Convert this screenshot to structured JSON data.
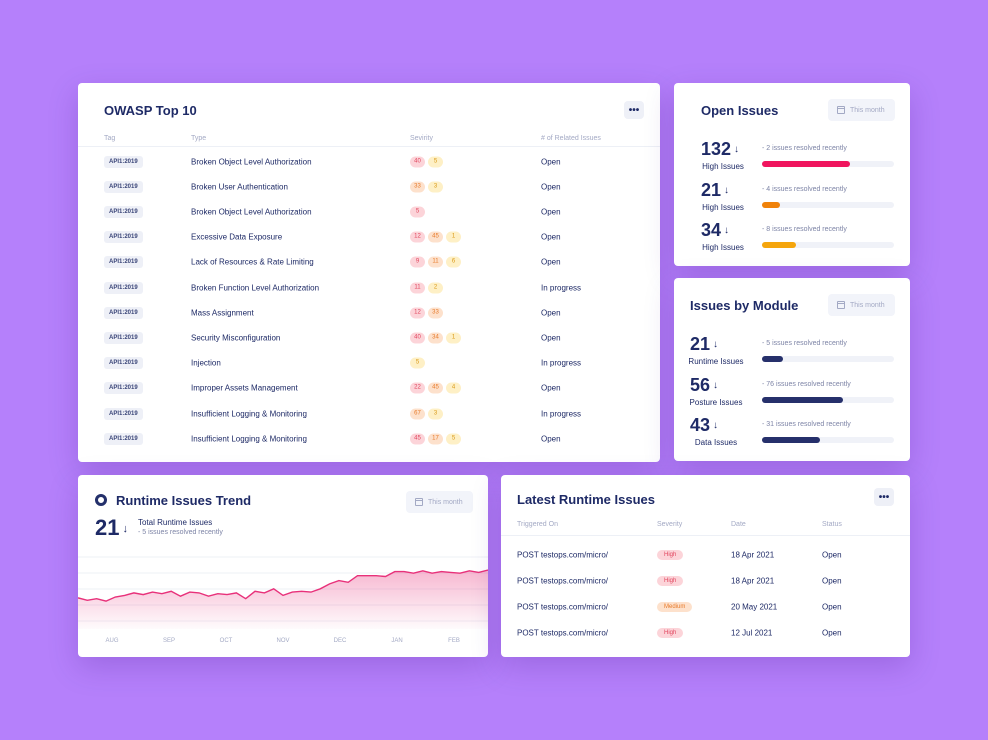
{
  "owasp": {
    "title": "OWASP Top 10",
    "more_label": "•••",
    "columns": {
      "tag": "Tag",
      "type": "Type",
      "severity": "Sevirity",
      "related": "# of Related Issues"
    },
    "rows": [
      {
        "tag": "API1:2019",
        "type": "Broken Object Level Authorization",
        "severity": [
          {
            "value": "40",
            "level": "critical"
          },
          {
            "value": "5",
            "level": "medium"
          }
        ],
        "status": "Open"
      },
      {
        "tag": "API1:2019",
        "type": "Broken User Authentication",
        "severity": [
          {
            "value": "33",
            "level": "high"
          },
          {
            "value": "3",
            "level": "medium"
          }
        ],
        "status": "Open"
      },
      {
        "tag": "API1:2019",
        "type": "Broken Object Level Authorization",
        "severity": [
          {
            "value": "5",
            "level": "critical"
          }
        ],
        "status": "Open"
      },
      {
        "tag": "API1:2019",
        "type": "Excessive Data Exposure",
        "severity": [
          {
            "value": "12",
            "level": "critical"
          },
          {
            "value": "45",
            "level": "high"
          },
          {
            "value": "1",
            "level": "medium"
          }
        ],
        "status": "Open"
      },
      {
        "tag": "API1:2019",
        "type": "Lack of Resources & Rate Limiting",
        "severity": [
          {
            "value": "9",
            "level": "critical"
          },
          {
            "value": "11",
            "level": "high"
          },
          {
            "value": "6",
            "level": "medium"
          }
        ],
        "status": "Open"
      },
      {
        "tag": "API1:2019",
        "type": "Broken Function Level Authorization",
        "severity": [
          {
            "value": "11",
            "level": "critical"
          },
          {
            "value": "2",
            "level": "medium"
          }
        ],
        "status": "In progress"
      },
      {
        "tag": "API1:2019",
        "type": "Mass Assignment",
        "severity": [
          {
            "value": "12",
            "level": "critical"
          },
          {
            "value": "33",
            "level": "high"
          }
        ],
        "status": "Open"
      },
      {
        "tag": "API1:2019",
        "type": "Security Misconfiguration",
        "severity": [
          {
            "value": "40",
            "level": "critical"
          },
          {
            "value": "34",
            "level": "high"
          },
          {
            "value": "1",
            "level": "medium"
          }
        ],
        "status": "Open"
      },
      {
        "tag": "API1:2019",
        "type": "Injection",
        "severity": [
          {
            "value": "5",
            "level": "medium"
          }
        ],
        "status": "In progress"
      },
      {
        "tag": "API1:2019",
        "type": "Improper Assets Management",
        "severity": [
          {
            "value": "22",
            "level": "critical"
          },
          {
            "value": "45",
            "level": "high"
          },
          {
            "value": "4",
            "level": "medium"
          }
        ],
        "status": "Open"
      },
      {
        "tag": "API1:2019",
        "type": "Insufficient Logging & Monitoring",
        "severity": [
          {
            "value": "67",
            "level": "high"
          },
          {
            "value": "3",
            "level": "medium"
          }
        ],
        "status": "In progress"
      },
      {
        "tag": "API1:2019",
        "type": "Insufficient Logging & Monitoring",
        "severity": [
          {
            "value": "45",
            "level": "critical"
          },
          {
            "value": "17",
            "level": "high"
          },
          {
            "value": "5",
            "level": "medium"
          }
        ],
        "status": "Open"
      }
    ]
  },
  "open_issues": {
    "title": "Open Issues",
    "period_label": "This month",
    "items": [
      {
        "count": "132",
        "arrow": "↓",
        "label": "High Issues",
        "note": "- 2 issues resolved recently",
        "progress": 0.67,
        "color": "#f0155e"
      },
      {
        "count": "21",
        "arrow": "↓",
        "label": "High Issues",
        "note": "- 4 issues resolved recently",
        "progress": 0.14,
        "color": "#f0820a"
      },
      {
        "count": "34",
        "arrow": "↓",
        "label": "High Issues",
        "note": "- 8 issues resolved recently",
        "progress": 0.26,
        "color": "#f5a50c"
      }
    ]
  },
  "issues_by_module": {
    "title": "Issues by Module",
    "period_label": "This month",
    "items": [
      {
        "count": "21",
        "arrow": "↓",
        "label": "Runtime Issues",
        "note": "- 5 issues resolved recently",
        "progress": 0.16,
        "color": "#26306b"
      },
      {
        "count": "56",
        "arrow": "↓",
        "label": "Posture Issues",
        "note": "- 76 issues resolved recently",
        "progress": 0.61,
        "color": "#26306b"
      },
      {
        "count": "43",
        "arrow": "↓",
        "label": "Data Issues",
        "note": "- 31 issues resolved recently",
        "progress": 0.44,
        "color": "#26306b"
      }
    ]
  },
  "runtime_trend": {
    "title": "Runtime Issues Trend",
    "period_label": "This month",
    "total": "21",
    "arrow": "↓",
    "total_label": "Total Runtime Issues",
    "note": "- 5 issues resolved recently",
    "line_color": "#e8317a"
  },
  "chart_data": {
    "type": "area",
    "title": "Runtime Issues Trend",
    "x_labels": [
      "AUG",
      "SEP",
      "OCT",
      "NOV",
      "DEC",
      "JAN",
      "FEB"
    ],
    "y_range": [
      0,
      100
    ],
    "values": [
      38,
      35,
      37,
      34,
      39,
      41,
      44,
      42,
      45,
      43,
      46,
      40,
      45,
      44,
      40,
      43,
      42,
      44,
      37,
      46,
      44,
      49,
      41,
      45,
      46,
      45,
      49,
      55,
      59,
      57,
      65,
      65,
      65,
      64,
      70,
      70,
      68,
      71,
      68,
      70,
      69,
      68,
      71,
      69,
      72
    ]
  },
  "latest_runtime": {
    "title": "Latest Runtime Issues",
    "more_label": "•••",
    "columns": {
      "triggered_on": "Triggered On",
      "severity": "Severity",
      "date": "Date",
      "status": "Status"
    },
    "rows": [
      {
        "triggered_on": "POST testops.com/micro/",
        "severity": "High",
        "level": "high",
        "date": "18 Apr 2021",
        "status": "Open"
      },
      {
        "triggered_on": "POST testops.com/micro/",
        "severity": "High",
        "level": "high",
        "date": "18 Apr 2021",
        "status": "Open"
      },
      {
        "triggered_on": "POST testops.com/micro/",
        "severity": "Medium",
        "level": "medium",
        "date": "20 May 2021",
        "status": "Open"
      },
      {
        "triggered_on": "POST testops.com/micro/",
        "severity": "High",
        "level": "high",
        "date": "12 Jul 2021",
        "status": "Open"
      }
    ]
  }
}
